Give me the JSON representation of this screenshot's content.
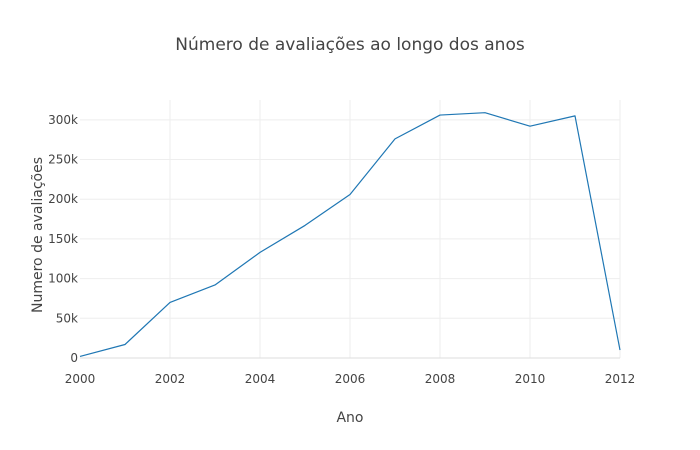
{
  "chart_data": {
    "type": "line",
    "title": "Número de avaliações ao longo dos anos",
    "xlabel": "Ano",
    "ylabel": "Numero de avaliações",
    "xlim": [
      2000,
      2012
    ],
    "ylim": [
      0,
      325000
    ],
    "x_ticks": [
      2000,
      2002,
      2004,
      2006,
      2008,
      2010,
      2012
    ],
    "x_tick_labels": [
      "2000",
      "2002",
      "2004",
      "2006",
      "2008",
      "2010",
      "2012"
    ],
    "y_ticks": [
      0,
      50000,
      100000,
      150000,
      200000,
      250000,
      300000
    ],
    "y_tick_labels": [
      "0",
      "50k",
      "100k",
      "150k",
      "200k",
      "250k",
      "300k"
    ],
    "grid": true,
    "legend": "none",
    "series": [
      {
        "color": "#1f77b4",
        "x": [
          2000,
          2001,
          2002,
          2003,
          2004,
          2005,
          2006,
          2007,
          2008,
          2009,
          2010,
          2011,
          2012
        ],
        "y": [
          2000,
          17000,
          70000,
          92000,
          133000,
          167000,
          206000,
          276000,
          306000,
          309000,
          292000,
          305000,
          10000
        ]
      }
    ]
  }
}
